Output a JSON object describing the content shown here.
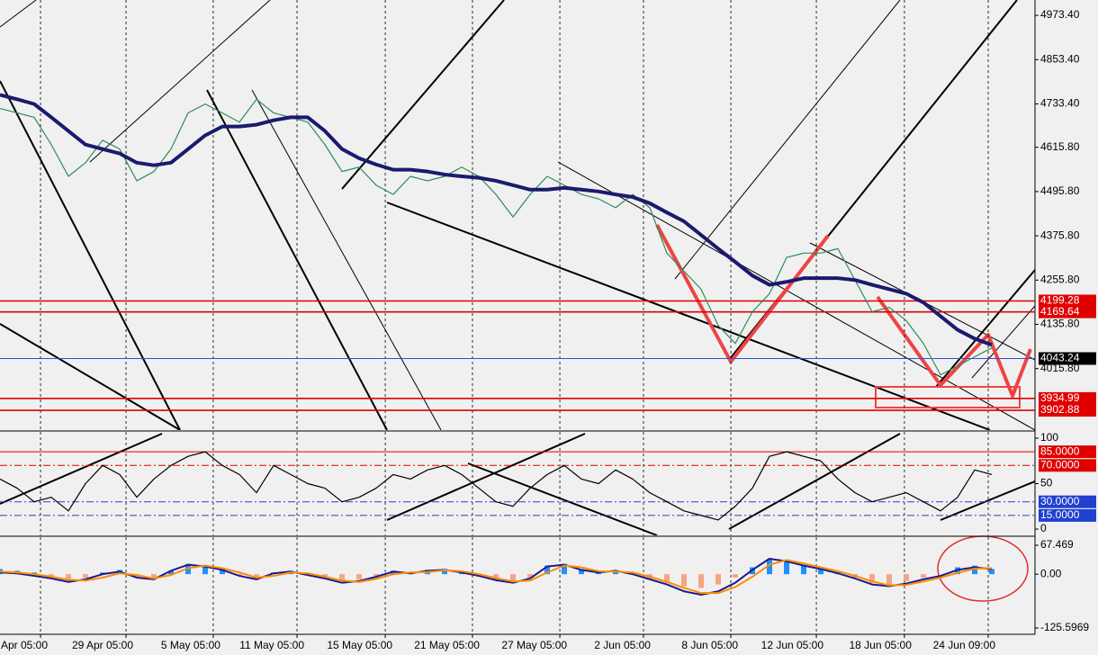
{
  "chart_data": [
    {
      "type": "line",
      "ylim": [
        3849.3,
        5015.0
      ],
      "yticks": [
        {
          "value": 4973.4,
          "label": "4973.40"
        },
        {
          "value": 4853.4,
          "label": "4853.40"
        },
        {
          "value": 4733.4,
          "label": "4733.40"
        },
        {
          "value": 4615.8,
          "label": "4615.80"
        },
        {
          "value": 4495.8,
          "label": "4495.80"
        },
        {
          "value": 4375.8,
          "label": "4375.80"
        },
        {
          "value": 4255.8,
          "label": "4255.80"
        },
        {
          "value": 4135.8,
          "label": "4135.80"
        },
        {
          "value": 4015.8,
          "label": "4015.80"
        }
      ],
      "levels": [
        {
          "value": 4199.28,
          "color": "#e00000",
          "style": "solid"
        },
        {
          "value": 4169.64,
          "color": "#e00000",
          "style": "solid"
        },
        {
          "value": 4043.24,
          "color": "#3050d0",
          "style": "solid"
        },
        {
          "value": 3934.99,
          "color": "#e00000",
          "style": "solid"
        },
        {
          "value": 3902.88,
          "color": "#e00000",
          "style": "solid"
        }
      ],
      "series": [
        {
          "color": "#2e8b57",
          "values": [
            4721,
            4709,
            4697,
            4623,
            4537,
            4574,
            4635,
            4611,
            4525,
            4550,
            4611,
            4709,
            4733,
            4709,
            4684,
            4746,
            4709,
            4697,
            4684,
            4623,
            4550,
            4562,
            4513,
            4488,
            4537,
            4525,
            4537,
            4562,
            4537,
            4488,
            4427,
            4488,
            4537,
            4513,
            4488,
            4476,
            4452,
            4488,
            4452,
            4329,
            4280,
            4231,
            4133,
            4084,
            4170,
            4219,
            4317,
            4329,
            4329,
            4341,
            4256,
            4170,
            4182,
            4146,
            4084,
            3999,
            4023,
            4048,
            4072
          ]
        },
        {
          "color": "#1a1a6e",
          "values": [
            4758,
            4746,
            4733,
            4697,
            4660,
            4623,
            4611,
            4599,
            4574,
            4567,
            4574,
            4611,
            4648,
            4672,
            4672,
            4677,
            4689,
            4697,
            4697,
            4660,
            4611,
            4586,
            4569,
            4555,
            4555,
            4550,
            4542,
            4537,
            4533,
            4525,
            4513,
            4501,
            4501,
            4506,
            4501,
            4496,
            4488,
            4481,
            4464,
            4439,
            4415,
            4378,
            4341,
            4305,
            4268,
            4243,
            4251,
            4261,
            4261,
            4261,
            4256,
            4243,
            4231,
            4219,
            4195,
            4158,
            4121,
            4097,
            4080
          ]
        }
      ]
    },
    {
      "type": "line",
      "ylim": [
        -6.9,
        106.9
      ],
      "yticks": [
        100,
        50,
        0
      ],
      "levels": [
        {
          "value": 85,
          "label": "85.0000",
          "color": "#e00000",
          "style": "solid"
        },
        {
          "value": 70,
          "label": "70.0000",
          "color": "#e00000",
          "style": "dashdot"
        },
        {
          "value": 30,
          "label": "30.0000",
          "color": "#2040d0",
          "style": "dashdot"
        },
        {
          "value": 15,
          "label": "15.0000",
          "color": "#2040d0",
          "style": "dashdot"
        }
      ],
      "series": [
        {
          "color": "#000000",
          "values": [
            55,
            45,
            30,
            35,
            20,
            50,
            70,
            60,
            35,
            55,
            70,
            80,
            85,
            70,
            60,
            40,
            70,
            60,
            50,
            45,
            30,
            35,
            45,
            60,
            55,
            65,
            70,
            60,
            45,
            30,
            25,
            45,
            60,
            70,
            55,
            50,
            65,
            55,
            40,
            30,
            20,
            15,
            10,
            25,
            45,
            80,
            85,
            80,
            75,
            55,
            40,
            30,
            35,
            40,
            30,
            20,
            35,
            65,
            60
          ]
        }
      ]
    },
    {
      "type": "macd",
      "ylim": [
        -140.3,
        86.4
      ],
      "yticks": [
        67.469,
        {
          "value": 0,
          "label": "0.00"
        },
        -125.5969
      ],
      "histogram": [
        12,
        8,
        4,
        -4,
        -12,
        -8,
        4,
        10,
        -8,
        -12,
        8,
        24,
        20,
        12,
        -4,
        -12,
        4,
        8,
        0,
        -8,
        -16,
        -12,
        -4,
        8,
        4,
        10,
        12,
        6,
        -4,
        -12,
        -16,
        -8,
        20,
        24,
        12,
        4,
        8,
        0,
        -12,
        -20,
        -28,
        -32,
        -24,
        -8,
        16,
        36,
        32,
        20,
        12,
        4,
        -8,
        -20,
        -24,
        -16,
        -8,
        0,
        16,
        20,
        12
      ],
      "hist_colors": [
        "#1e90ff",
        "#f4a582"
      ],
      "series": [
        {
          "color": "#1a1a8e",
          "values": [
            4,
            2,
            -4,
            -10,
            -18,
            -12,
            0,
            6,
            -8,
            -12,
            8,
            22,
            18,
            10,
            -4,
            -12,
            2,
            6,
            -2,
            -10,
            -20,
            -16,
            -6,
            6,
            2,
            8,
            10,
            4,
            -4,
            -14,
            -20,
            -10,
            18,
            22,
            10,
            4,
            8,
            0,
            -12,
            -24,
            -40,
            -48,
            -40,
            -20,
            10,
            36,
            30,
            20,
            12,
            2,
            -10,
            -24,
            -28,
            -22,
            -12,
            -4,
            10,
            16,
            12
          ]
        },
        {
          "color": "#ff8c00",
          "values": [
            6,
            4,
            0,
            -6,
            -13,
            -15,
            -8,
            2,
            -2,
            -10,
            -2,
            14,
            20,
            14,
            4,
            -8,
            -4,
            4,
            2,
            -6,
            -15,
            -18,
            -11,
            0,
            4,
            5,
            9,
            7,
            0,
            -9,
            -17,
            -15,
            4,
            20,
            16,
            7,
            6,
            4,
            -6,
            -18,
            -32,
            -44,
            -44,
            -30,
            -6,
            22,
            33,
            25,
            16,
            7,
            -4,
            -17,
            -26,
            -25,
            -17,
            -8,
            3,
            13,
            14
          ]
        }
      ],
      "xticks": [
        {
          "value": 2.37,
          "label": "Apr 05:00"
        },
        {
          "value": 7.37,
          "label": "29 Apr 05:00"
        },
        {
          "value": 12.47,
          "label": "5 May 05:00"
        },
        {
          "value": 17.37,
          "label": "11 May 05:00"
        },
        {
          "value": 22.53,
          "label": "15 May 05:00"
        },
        {
          "value": 27.63,
          "label": "21 May 05:00"
        },
        {
          "value": 32.74,
          "label": "27 May 05:00"
        },
        {
          "value": 37.63,
          "label": "2 Jun 05:00"
        },
        {
          "value": 42.74,
          "label": "8 Jun 05:00"
        },
        {
          "value": 47.74,
          "label": "12 Jun 05:00"
        },
        {
          "value": 52.89,
          "label": "18 Jun 05:00"
        },
        {
          "value": 57.79,
          "label": "24 Jun 09:00"
        }
      ]
    }
  ]
}
